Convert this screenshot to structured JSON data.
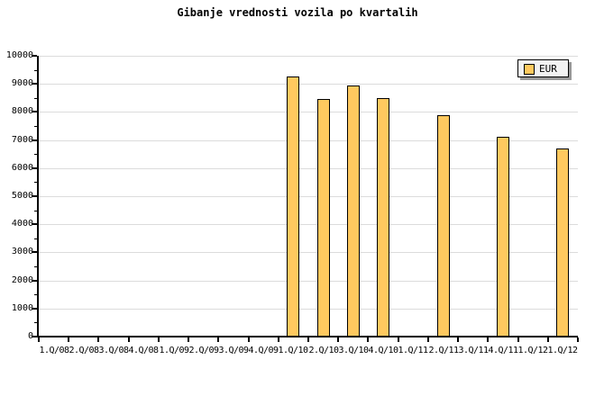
{
  "chart_data": {
    "type": "bar",
    "title": "Gibanje vrednosti vozila po kvartalih",
    "categories": [
      "1.Q/08",
      "2.Q/08",
      "3.Q/08",
      "4.Q/08",
      "1.Q/09",
      "2.Q/09",
      "3.Q/09",
      "4.Q/09",
      "1.Q/10",
      "2.Q/10",
      "3.Q/10",
      "4.Q/10",
      "1.Q/11",
      "2.Q/11",
      "3.Q/11",
      "4.Q/11",
      "1.Q/12",
      "1.Q/12"
    ],
    "series": [
      {
        "name": "EUR",
        "values": [
          null,
          null,
          null,
          null,
          null,
          null,
          null,
          null,
          9250,
          8450,
          8950,
          8500,
          null,
          7900,
          null,
          7100,
          null,
          6700
        ]
      }
    ],
    "xlabel": "",
    "ylabel": "",
    "ylim": [
      0,
      10000
    ],
    "ytick_step": 1000,
    "ytick_minor_step": 500,
    "ytick_labels": [
      "0",
      "1000",
      "2000",
      "3000",
      "4000",
      "5000",
      "6000",
      "7000",
      "8000",
      "9000",
      "10000"
    ],
    "grid": "horizontal-major",
    "legend": {
      "position": "top-right",
      "label": "EUR"
    },
    "colors": {
      "background": "#FFFFFF",
      "bar_fill": "#FFC95F",
      "bar_border": "#000000",
      "grid": "#DCDCDC",
      "axis": "#000000",
      "legend_bg": "#F2F2F2",
      "legend_shadow": "#999999"
    }
  }
}
